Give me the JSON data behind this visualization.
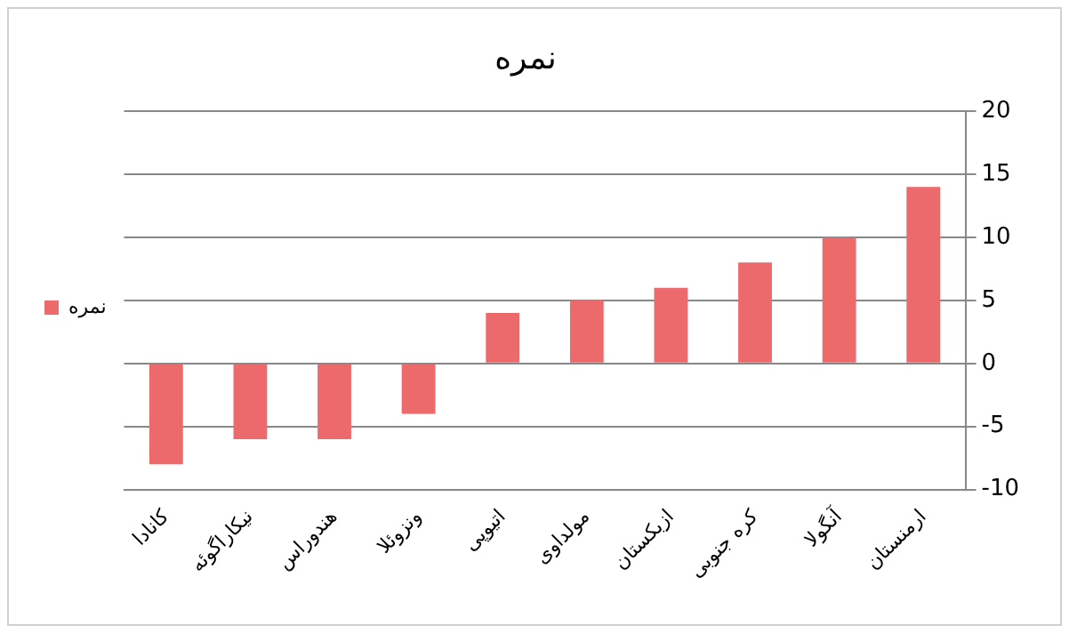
{
  "chart_data": {
    "type": "bar",
    "title": "نمره",
    "categories": [
      "کانادا",
      "نیکاراگوئه",
      "هندوراس",
      "ونزوئلا",
      "اتیوپی",
      "مولداوی",
      "ازبکستان",
      "کره جنوبی",
      "آنگولا",
      "ارمنستان"
    ],
    "series": [
      {
        "name": "نمره",
        "color": "#ec6a6c",
        "values": [
          -8,
          -6,
          -6,
          -4,
          4,
          5,
          6,
          8,
          10,
          14
        ]
      }
    ],
    "ylim": [
      -10,
      20
    ],
    "yticks": [
      -10,
      -5,
      0,
      5,
      10,
      15,
      20
    ],
    "grid": "y",
    "legend": "left"
  }
}
